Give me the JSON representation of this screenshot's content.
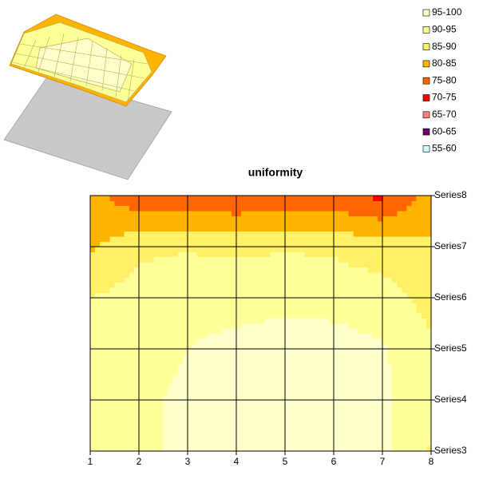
{
  "chart_data": {
    "type": "contour",
    "title": "uniformity",
    "x": [
      1,
      2,
      3,
      4,
      5,
      6,
      7,
      8
    ],
    "xlim": [
      1,
      8
    ],
    "y_categories": [
      "Series3",
      "Series4",
      "Series5",
      "Series6",
      "Series7",
      "Series8"
    ],
    "z": [
      [
        91,
        94,
        96,
        97,
        97,
        97,
        96,
        89.5
      ],
      [
        91,
        94,
        96,
        97,
        97,
        97,
        96,
        91.5
      ],
      [
        90.5,
        93,
        95,
        96.5,
        96.8,
        96.8,
        95.5,
        91
      ],
      [
        90,
        92,
        93.5,
        93,
        94,
        93.5,
        92.5,
        88
      ],
      [
        84,
        89,
        89.5,
        89,
        89.5,
        89,
        87,
        86
      ],
      [
        82,
        76,
        76,
        75,
        76,
        76,
        74,
        82
      ]
    ],
    "bands": [
      {
        "label": "95-100",
        "min": 95,
        "max": 100,
        "color": "#FFFFCC"
      },
      {
        "label": "90-95",
        "min": 90,
        "max": 95,
        "color": "#FFFF99"
      },
      {
        "label": "85-90",
        "min": 85,
        "max": 90,
        "color": "#FFF066"
      },
      {
        "label": "80-85",
        "min": 80,
        "max": 85,
        "color": "#FFB400"
      },
      {
        "label": "75-80",
        "min": 75,
        "max": 80,
        "color": "#FF6600"
      },
      {
        "label": "70-75",
        "min": 70,
        "max": 75,
        "color": "#FF0000"
      },
      {
        "label": "65-70",
        "min": 65,
        "max": 70,
        "color": "#FF8080"
      },
      {
        "label": "60-65",
        "min": 60,
        "max": 65,
        "color": "#660066"
      },
      {
        "label": "55-60",
        "min": 55,
        "max": 60,
        "color": "#CCFFFF"
      }
    ],
    "grid": true
  }
}
